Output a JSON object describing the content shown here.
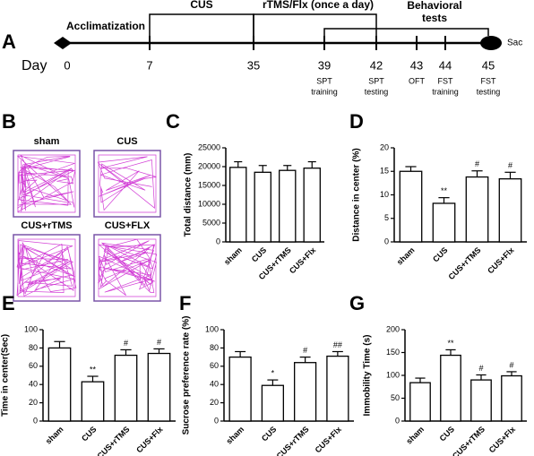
{
  "timeline": {
    "label": "A",
    "day_label": "Day",
    "end_label": "Sac",
    "phases": [
      [
        "Acclimatization"
      ],
      [
        "CUS"
      ],
      [
        "rTMS/Flx (once a day)"
      ],
      [
        "Behavioral",
        "tests"
      ]
    ],
    "days": [
      "0",
      "7",
      "35",
      "39",
      "42",
      "43",
      "44",
      "45"
    ],
    "events": [
      null,
      null,
      null,
      [
        "SPT",
        "training"
      ],
      [
        "SPT",
        "testing"
      ],
      [
        "OFT"
      ],
      [
        "FST",
        "training"
      ],
      [
        "FST",
        "testing"
      ]
    ]
  },
  "open_field": {
    "label": "B",
    "groups": [
      "sham",
      "CUS",
      "CUS+rTMS",
      "CUS+FLX"
    ]
  },
  "chart_data": [
    {
      "type": "bar",
      "label": "C",
      "y_label": "Total distance (mm)",
      "categories": [
        "sham",
        "CUS",
        "CUS+rTMS",
        "CUS+Flx"
      ],
      "values": [
        19800,
        18500,
        19000,
        19600
      ],
      "errors": [
        1500,
        1800,
        1300,
        1700
      ],
      "annotations": [
        null,
        null,
        null,
        null
      ],
      "ylim": [
        0,
        25000
      ],
      "yticks": [
        0,
        5000,
        10000,
        15000,
        20000,
        25000
      ],
      "color": "#ffffff"
    },
    {
      "type": "bar",
      "label": "D",
      "y_label": "Distance in center (%)",
      "categories": [
        "sham",
        "CUS",
        "CUS+rTMS",
        "CUS+Flx"
      ],
      "values": [
        15,
        8.2,
        13.8,
        13.4
      ],
      "errors": [
        1,
        1.2,
        1.3,
        1.4
      ],
      "annotations": [
        null,
        "**",
        "#",
        "#"
      ],
      "ylim": [
        0,
        20
      ],
      "yticks": [
        0,
        5,
        10,
        15,
        20
      ],
      "color": "#ffffff"
    },
    {
      "type": "bar",
      "label": "E",
      "y_label": "Time  in center(Sec)",
      "categories": [
        "sham",
        "CUS",
        "CUS+rTMS",
        "CUS+Flx"
      ],
      "values": [
        80,
        43,
        72,
        74
      ],
      "errors": [
        7,
        6,
        6,
        5
      ],
      "annotations": [
        null,
        "**",
        "#",
        "#"
      ],
      "ylim": [
        0,
        100
      ],
      "yticks": [
        0,
        20,
        40,
        60,
        80,
        100
      ],
      "color": "#ffffff"
    },
    {
      "type": "bar",
      "label": "F",
      "y_label": "Sucrose preference rate (%)",
      "categories": [
        "sham",
        "CUS",
        "CUS+rTMS",
        "CUS+Flx"
      ],
      "values": [
        70,
        39,
        64,
        71
      ],
      "errors": [
        6,
        6,
        6,
        5
      ],
      "annotations": [
        null,
        "*",
        "#",
        "##"
      ],
      "ylim": [
        0,
        100
      ],
      "yticks": [
        0,
        20,
        40,
        60,
        80,
        100
      ],
      "color": "#ffffff"
    },
    {
      "type": "bar",
      "label": "G",
      "y_label": "Immobility Time (s)",
      "categories": [
        "sham",
        "CUS",
        "CUS+rTMS",
        "CUS+Flx"
      ],
      "values": [
        84,
        144,
        90,
        99
      ],
      "errors": [
        10,
        12,
        11,
        9
      ],
      "annotations": [
        null,
        "**",
        "#",
        "#"
      ],
      "ylim": [
        0,
        200
      ],
      "yticks": [
        0,
        50,
        100,
        150,
        200
      ],
      "color": "#ffffff"
    }
  ]
}
